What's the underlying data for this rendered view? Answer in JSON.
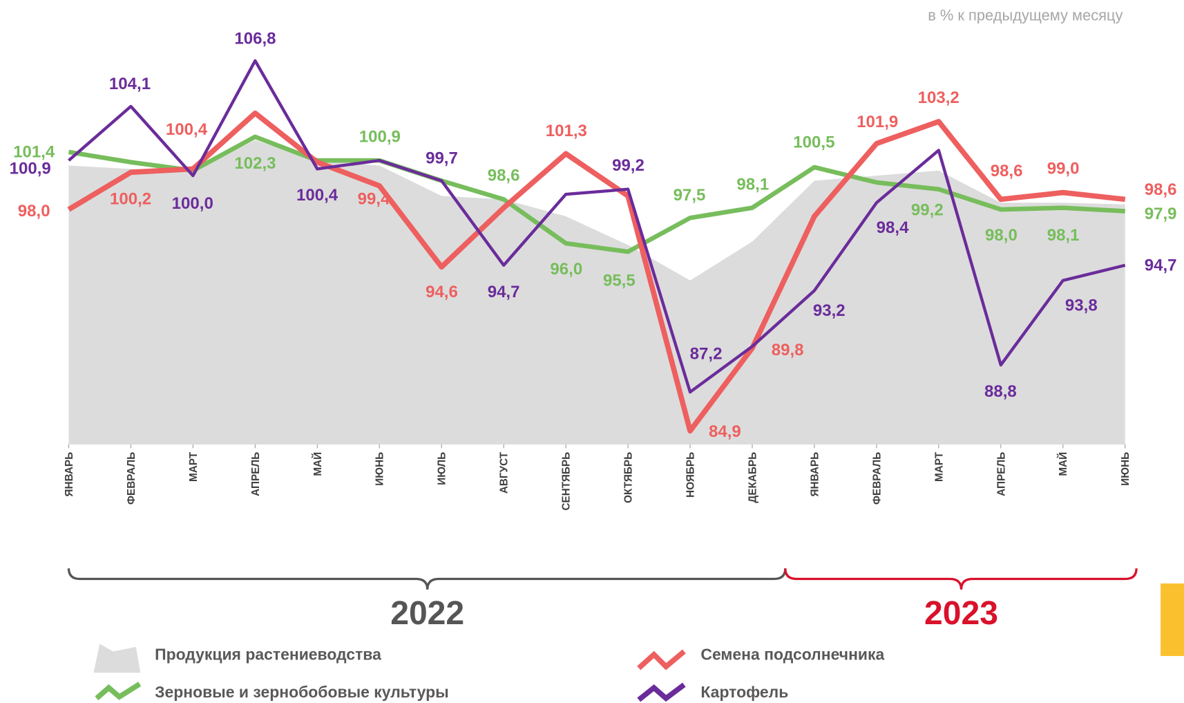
{
  "chart_data": {
    "type": "line",
    "subtitle": "в % к предыдущему месяцу",
    "categories": [
      "ЯНВАРЬ",
      "ФЕВРАЛЬ",
      "МАРТ",
      "АПРЕЛЬ",
      "МАЙ",
      "ИЮНЬ",
      "ИЮЛЬ",
      "АВГУСТ",
      "СЕНТЯБРЬ",
      "ОКТЯБРЬ",
      "НОЯБРЬ",
      "ДЕКАБРЬ",
      "ЯНВАРЬ",
      "ФЕВРАЛЬ",
      "МАРТ",
      "АПРЕЛЬ",
      "МАЙ",
      "ИЮНЬ"
    ],
    "ylim": [
      84.1,
      107.3
    ],
    "annotations": [
      "2022",
      "2023"
    ],
    "series": [
      {
        "name": "Продукция растениеводства",
        "type": "area",
        "color": "#dcdcdc",
        "values": [
          100.6,
          100.4,
          100.3,
          102.1,
          100.9,
          100.6,
          98.8,
          98.6,
          97.6,
          95.9,
          93.8,
          96.1,
          99.7,
          100.0,
          100.3,
          98.4,
          98.4,
          98.3
        ]
      },
      {
        "name": "Зерновые и зернобобовые культуры",
        "color": "#77bd5c",
        "values": [
          101.4,
          100.8,
          100.3,
          102.3,
          100.9,
          100.9,
          99.7,
          98.6,
          96.0,
          95.5,
          97.5,
          98.1,
          100.5,
          99.6,
          99.2,
          98.0,
          98.1,
          97.9
        ],
        "value_labels": [
          "101,4",
          null,
          null,
          "102,3",
          null,
          "100,9",
          null,
          "98,6",
          "96,0",
          "95,5",
          "97,5",
          "98,1",
          "100,5",
          null,
          "99,2",
          "98,0",
          "98,1",
          "97,9"
        ]
      },
      {
        "name": "Семена подсолнечника",
        "color": "#ee5f5f",
        "values": [
          98.0,
          100.2,
          100.4,
          103.7,
          100.8,
          99.4,
          94.6,
          98.1,
          101.3,
          98.8,
          84.9,
          89.8,
          97.6,
          101.9,
          103.2,
          98.6,
          99.0,
          98.6
        ],
        "value_labels": [
          "98,0",
          "100,2",
          "100,4",
          null,
          null,
          "99,4",
          "94,6",
          null,
          "101,3",
          null,
          "84,9",
          "89,8",
          null,
          "101,9",
          "103,2",
          "98,6",
          "99,0",
          "98,6"
        ]
      },
      {
        "name": "Картофель",
        "color": "#6a2c9a",
        "values": [
          100.9,
          104.1,
          100.0,
          106.8,
          100.4,
          100.9,
          99.7,
          94.7,
          98.9,
          99.2,
          87.2,
          89.9,
          93.2,
          98.4,
          101.5,
          88.8,
          93.8,
          94.7
        ],
        "value_labels": [
          "100,9",
          "104,1",
          "100,0",
          "106,8",
          "100,4",
          null,
          "99,7",
          "94,7",
          null,
          "99,2",
          "87,2",
          null,
          "93,2",
          "98,4",
          null,
          "88,8",
          "93,8",
          "94,7"
        ]
      }
    ]
  }
}
